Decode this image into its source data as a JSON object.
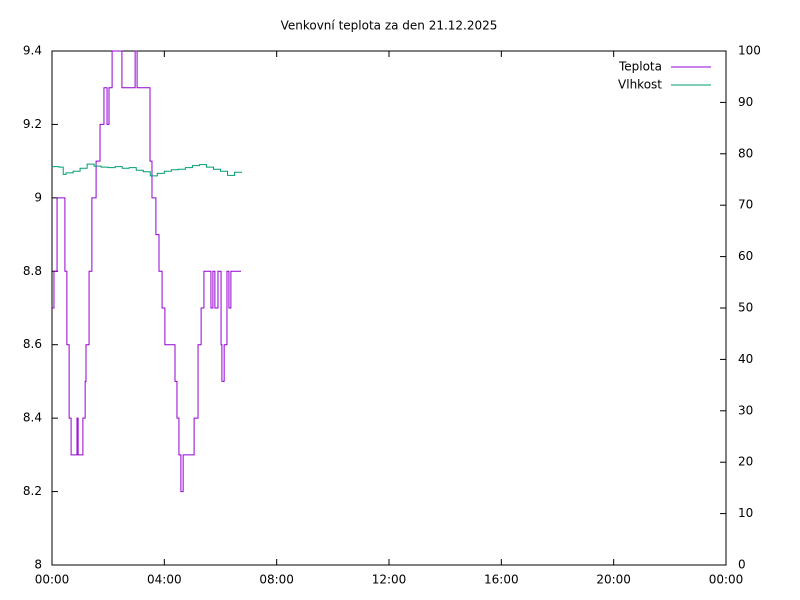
{
  "chart_data": {
    "type": "line",
    "title": "Venkovní teplota za den 21.12.2025",
    "xlim": [
      0,
      24
    ],
    "xticks": [
      {
        "value": 0,
        "label": "00:00"
      },
      {
        "value": 4,
        "label": "04:00"
      },
      {
        "value": 8,
        "label": "08:00"
      },
      {
        "value": 12,
        "label": "12:00"
      },
      {
        "value": 16,
        "label": "16:00"
      },
      {
        "value": 20,
        "label": "20:00"
      },
      {
        "value": 24,
        "label": "00:00"
      }
    ],
    "ylim": [
      8,
      9.4
    ],
    "yticks": [
      8,
      8.2,
      8.4,
      8.6,
      8.8,
      9,
      9.2,
      9.4
    ],
    "y2lim": [
      0,
      100
    ],
    "y2ticks": [
      0,
      10,
      20,
      30,
      40,
      50,
      60,
      70,
      80,
      90,
      100
    ],
    "grid": false,
    "legend": "top-right",
    "line_style": "steps",
    "series": [
      {
        "name": "Teplota",
        "color": "#9400d3",
        "axis": "y",
        "x": [
          0,
          0.07,
          0.18,
          0.39,
          0.46,
          0.53,
          0.61,
          0.68,
          0.85,
          0.89,
          0.93,
          1.07,
          1.1,
          1.18,
          1.21,
          1.32,
          1.42,
          1.57,
          1.71,
          1.85,
          1.96,
          2.03,
          2.14,
          2.42,
          2.49,
          2.92,
          2.96,
          3.03,
          3.42,
          3.49,
          3.56,
          3.7,
          3.81,
          3.92,
          4.02,
          4.31,
          4.38,
          4.45,
          4.52,
          4.59,
          4.67,
          5.02,
          5.06,
          5.2,
          5.31,
          5.41,
          5.59,
          5.66,
          5.73,
          5.8,
          5.91,
          6.02,
          6.05,
          6.13,
          6.23,
          6.3,
          6.37,
          6.73
        ],
        "values": [
          8.7,
          8.8,
          9.0,
          9.0,
          8.8,
          8.6,
          8.4,
          8.3,
          8.3,
          8.4,
          8.3,
          8.3,
          8.4,
          8.5,
          8.6,
          8.8,
          9.0,
          9.1,
          9.2,
          9.3,
          9.2,
          9.3,
          9.4,
          9.4,
          9.3,
          9.3,
          9.4,
          9.3,
          9.3,
          9.1,
          9.0,
          8.9,
          8.8,
          8.7,
          8.6,
          8.6,
          8.5,
          8.4,
          8.3,
          8.2,
          8.3,
          8.3,
          8.4,
          8.6,
          8.7,
          8.8,
          8.8,
          8.7,
          8.8,
          8.7,
          8.8,
          8.6,
          8.5,
          8.6,
          8.8,
          8.7,
          8.8,
          8.8
        ]
      },
      {
        "name": "Vlhkost",
        "color": "#009e73",
        "axis": "y2",
        "x": [
          0,
          0.25,
          0.4,
          0.5,
          0.75,
          1.0,
          1.25,
          1.5,
          1.75,
          2.0,
          2.25,
          2.5,
          2.75,
          3.0,
          3.25,
          3.5,
          3.75,
          4.0,
          4.25,
          4.5,
          4.75,
          5.0,
          5.25,
          5.5,
          5.75,
          6.0,
          6.25,
          6.5,
          6.75
        ],
        "values": [
          77.5,
          77.4,
          76.0,
          76.3,
          76.6,
          77.2,
          78.0,
          77.6,
          77.4,
          77.3,
          77.5,
          77.2,
          77.3,
          76.8,
          76.5,
          75.7,
          76.2,
          76.6,
          76.9,
          77.0,
          77.3,
          77.7,
          77.9,
          77.4,
          77.0,
          76.6,
          75.8,
          76.4,
          76.5
        ]
      }
    ]
  }
}
